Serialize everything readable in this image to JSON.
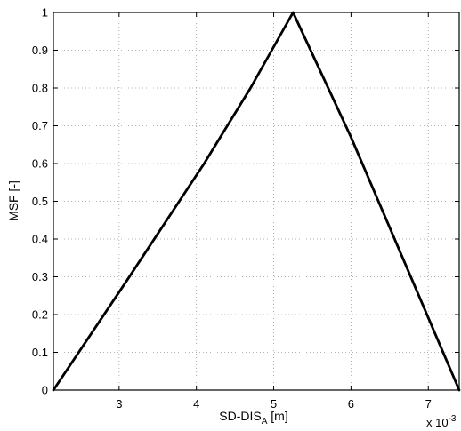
{
  "chart_data": {
    "type": "line",
    "title": "",
    "xlabel": {
      "main": "SD-DIS",
      "subscript": "A",
      "unit": " [m]"
    },
    "ylabel": "MSF [-]",
    "x_multiplier_label": {
      "base": "x 10",
      "exponent": "-3"
    },
    "x_scale": 0.001,
    "xlim": [
      0.00215,
      0.0074
    ],
    "ylim": [
      0,
      1
    ],
    "x_ticks": [
      0.003,
      0.004,
      0.005,
      0.006,
      0.007
    ],
    "x_tick_labels": [
      "3",
      "4",
      "5",
      "6",
      "7"
    ],
    "y_ticks": [
      0,
      0.1,
      0.2,
      0.3,
      0.4,
      0.5,
      0.6,
      0.7,
      0.8,
      0.9,
      1
    ],
    "y_tick_labels": [
      "0",
      "0.1",
      "0.2",
      "0.3",
      "0.4",
      "0.5",
      "0.6",
      "0.7",
      "0.8",
      "0.9",
      "1"
    ],
    "grid": true,
    "series": [
      {
        "color": "#000000",
        "points": [
          {
            "x": 0.00215,
            "y": 0.0
          },
          {
            "x": 0.0031,
            "y": 0.29
          },
          {
            "x": 0.0041,
            "y": 0.6
          },
          {
            "x": 0.0047,
            "y": 0.8
          },
          {
            "x": 0.00525,
            "y": 1.0
          },
          {
            "x": 0.006,
            "y": 0.67
          },
          {
            "x": 0.0074,
            "y": 0.0
          }
        ]
      }
    ]
  }
}
